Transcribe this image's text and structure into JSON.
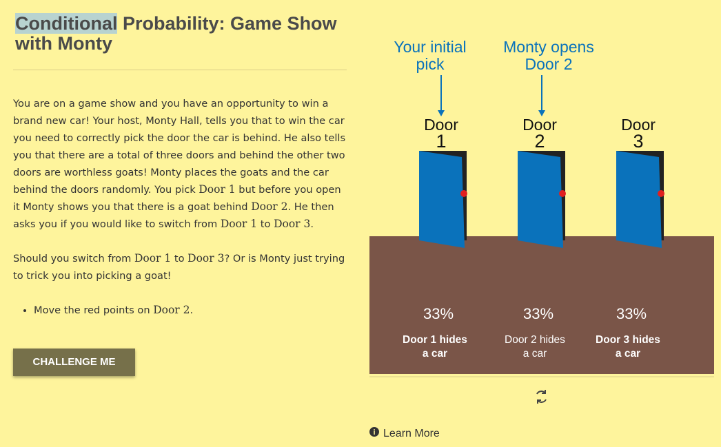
{
  "header": {
    "title_highlight": "Conditional",
    "title_rest": "Probability: Game Show with Monty"
  },
  "paragraphs": [
    [
      "You are on a game show and you have an opportunity to win a brand new car! Your host, Monty Hall, tells you that to win the car you need to correctly pick the door the car is behind. He also tells you that there are a total of three doors and behind the other two doors are worthless goats! Monty places the goats and the car behind the doors randomly. You pick ",
      "Door 1",
      " but before you open it Monty shows you that there is a goat behind ",
      "Door 2",
      ". He then asks you if you would like to switch from ",
      "Door 1",
      " to ",
      "Door 3",
      "."
    ],
    [
      "Should you switch from ",
      "Door 1",
      " to ",
      "Door 3",
      "? Or is Monty just trying to trick you into picking a goat!"
    ]
  ],
  "bullet": [
    "Move the red points on ",
    "Door 2",
    "."
  ],
  "button": "CHALLENGE ME",
  "arrows": [
    [
      "Your initial",
      "pick"
    ],
    [
      "Monty opens",
      "Door 2"
    ]
  ],
  "doors": [
    {
      "name": "Door",
      "number": "1",
      "percent": "33%",
      "caption": [
        "Door 1 hides",
        "a car"
      ]
    },
    {
      "name": "Door",
      "number": "2",
      "percent": "33%",
      "caption": [
        "Door 2 hides",
        "a car"
      ]
    },
    {
      "name": "Door",
      "number": "3",
      "percent": "33%",
      "caption": [
        "Door 3 hides",
        "a car"
      ]
    }
  ],
  "learn_more": "Learn More"
}
